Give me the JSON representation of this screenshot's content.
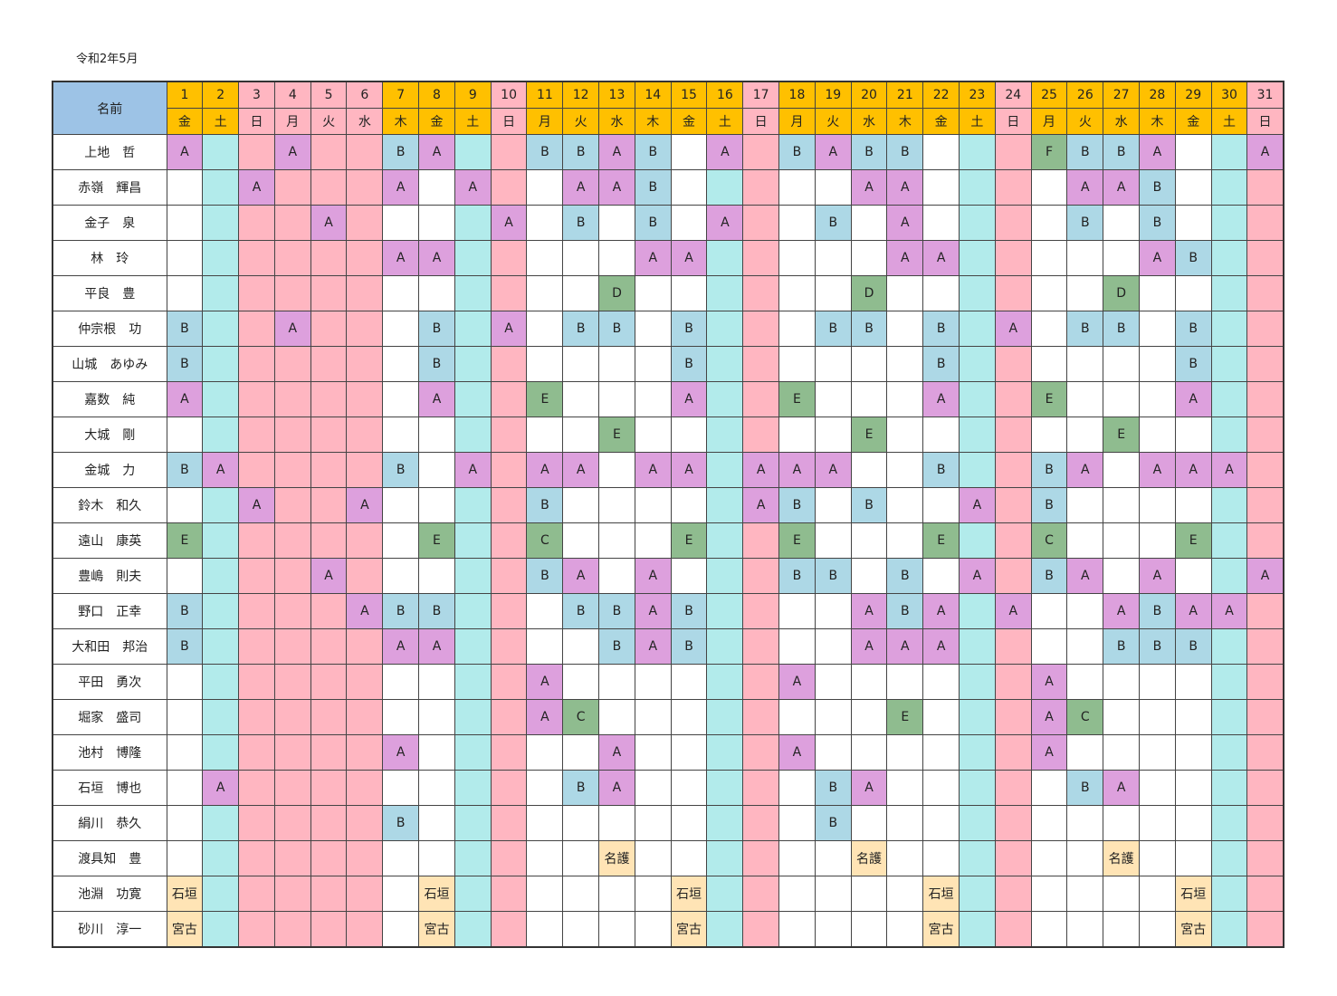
{
  "title": "令和2年5月",
  "header": {
    "name_label": "名前",
    "days": [
      {
        "num": "1",
        "wd": "金",
        "type": "wk"
      },
      {
        "num": "2",
        "wd": "土",
        "type": "wk"
      },
      {
        "num": "3",
        "wd": "日",
        "type": "we"
      },
      {
        "num": "4",
        "wd": "月",
        "type": "we"
      },
      {
        "num": "5",
        "wd": "火",
        "type": "we"
      },
      {
        "num": "6",
        "wd": "水",
        "type": "we"
      },
      {
        "num": "7",
        "wd": "木",
        "type": "wk"
      },
      {
        "num": "8",
        "wd": "金",
        "type": "wk"
      },
      {
        "num": "9",
        "wd": "土",
        "type": "wk"
      },
      {
        "num": "10",
        "wd": "日",
        "type": "we"
      },
      {
        "num": "11",
        "wd": "月",
        "type": "wk"
      },
      {
        "num": "12",
        "wd": "火",
        "type": "wk"
      },
      {
        "num": "13",
        "wd": "水",
        "type": "wk"
      },
      {
        "num": "14",
        "wd": "木",
        "type": "wk"
      },
      {
        "num": "15",
        "wd": "金",
        "type": "wk"
      },
      {
        "num": "16",
        "wd": "土",
        "type": "wk"
      },
      {
        "num": "17",
        "wd": "日",
        "type": "we"
      },
      {
        "num": "18",
        "wd": "月",
        "type": "wk"
      },
      {
        "num": "19",
        "wd": "火",
        "type": "wk"
      },
      {
        "num": "20",
        "wd": "水",
        "type": "wk"
      },
      {
        "num": "21",
        "wd": "木",
        "type": "wk"
      },
      {
        "num": "22",
        "wd": "金",
        "type": "wk"
      },
      {
        "num": "23",
        "wd": "土",
        "type": "wk"
      },
      {
        "num": "24",
        "wd": "日",
        "type": "we"
      },
      {
        "num": "25",
        "wd": "月",
        "type": "wk"
      },
      {
        "num": "26",
        "wd": "火",
        "type": "wk"
      },
      {
        "num": "27",
        "wd": "水",
        "type": "wk"
      },
      {
        "num": "28",
        "wd": "木",
        "type": "wk"
      },
      {
        "num": "29",
        "wd": "金",
        "type": "wk"
      },
      {
        "num": "30",
        "wd": "土",
        "type": "wk"
      },
      {
        "num": "31",
        "wd": "日",
        "type": "we"
      }
    ]
  },
  "column_types": [
    "wd",
    "sat",
    "sun",
    "sun",
    "sun",
    "sun",
    "wd",
    "wd",
    "sat",
    "sun",
    "wd",
    "wd",
    "wd",
    "wd",
    "wd",
    "sat",
    "sun",
    "wd",
    "wd",
    "wd",
    "wd",
    "wd",
    "sat",
    "sun",
    "wd",
    "wd",
    "wd",
    "wd",
    "wd",
    "sat",
    "sun"
  ],
  "rows": [
    {
      "name": "上地　哲",
      "cells": [
        "A",
        "",
        "",
        "A",
        "",
        "",
        "B",
        "A",
        "",
        "",
        "B",
        "B",
        "A",
        "B",
        "",
        "A",
        "",
        "B",
        "A",
        "B",
        "B",
        "",
        "",
        "",
        "F",
        "B",
        "B",
        "A",
        "",
        "",
        "A"
      ]
    },
    {
      "name": "赤嶺　輝昌",
      "cells": [
        "",
        "",
        "A",
        "",
        "",
        "",
        "A",
        "",
        "A",
        "",
        "",
        "A",
        "A",
        "B",
        "",
        "",
        "",
        "",
        "",
        "A",
        "A",
        "",
        "",
        "",
        "",
        "A",
        "A",
        "B",
        "",
        "",
        ""
      ]
    },
    {
      "name": "金子　泉",
      "cells": [
        "",
        "",
        "",
        "",
        "A",
        "",
        "",
        "",
        "",
        "A",
        "",
        "B",
        "",
        "B",
        "",
        "A",
        "",
        "",
        "B",
        "",
        "A",
        "",
        "",
        "",
        "",
        "B",
        "",
        "B",
        "",
        "",
        ""
      ]
    },
    {
      "name": "林　玲",
      "cells": [
        "",
        "",
        "",
        "",
        "",
        "",
        "A",
        "A",
        "",
        "",
        "",
        "",
        "",
        "A",
        "A",
        "",
        "",
        "",
        "",
        "",
        "A",
        "A",
        "",
        "",
        "",
        "",
        "",
        "A",
        "B",
        "",
        ""
      ]
    },
    {
      "name": "平良　豊",
      "cells": [
        "",
        "",
        "",
        "",
        "",
        "",
        "",
        "",
        "",
        "",
        "",
        "",
        "D",
        "",
        "",
        "",
        "",
        "",
        "",
        "D",
        "",
        "",
        "",
        "",
        "",
        "",
        "D",
        "",
        "",
        "",
        ""
      ]
    },
    {
      "name": "仲宗根　功",
      "cells": [
        "B",
        "",
        "",
        "A",
        "",
        "",
        "",
        "B",
        "",
        "A",
        "",
        "B",
        "B",
        "",
        "B",
        "",
        "",
        "",
        "B",
        "B",
        "",
        "B",
        "",
        "A",
        "",
        "B",
        "B",
        "",
        "B",
        "",
        ""
      ]
    },
    {
      "name": "山城　あゆみ",
      "cells": [
        "B",
        "",
        "",
        "",
        "",
        "",
        "",
        "B",
        "",
        "",
        "",
        "",
        "",
        "",
        "B",
        "",
        "",
        "",
        "",
        "",
        "",
        "B",
        "",
        "",
        "",
        "",
        "",
        "",
        "B",
        "",
        ""
      ]
    },
    {
      "name": "嘉数　純",
      "cells": [
        "A",
        "",
        "",
        "",
        "",
        "",
        "",
        "A",
        "",
        "",
        "E",
        "",
        "",
        "",
        "A",
        "",
        "",
        "E",
        "",
        "",
        "",
        "A",
        "",
        "",
        "E",
        "",
        "",
        "",
        "A",
        "",
        ""
      ]
    },
    {
      "name": "大城　剛",
      "cells": [
        "",
        "",
        "",
        "",
        "",
        "",
        "",
        "",
        "",
        "",
        "",
        "",
        "E",
        "",
        "",
        "",
        "",
        "",
        "",
        "E",
        "",
        "",
        "",
        "",
        "",
        "",
        "E",
        "",
        "",
        "",
        ""
      ]
    },
    {
      "name": "金城　力",
      "cells": [
        "B",
        "A",
        "",
        "",
        "",
        "",
        "B",
        "",
        "A",
        "",
        "A",
        "A",
        "",
        "A",
        "A",
        "",
        "A",
        "A",
        "A",
        "",
        "",
        "B",
        "",
        "",
        "B",
        "A",
        "",
        "A",
        "A",
        "A",
        ""
      ]
    },
    {
      "name": "鈴木　和久",
      "cells": [
        "",
        "",
        "A",
        "",
        "",
        "A",
        "",
        "",
        "",
        "",
        "B",
        "",
        "",
        "",
        "",
        "",
        "A",
        "B",
        "",
        "B",
        "",
        "",
        "A",
        "",
        "B",
        "",
        "",
        "",
        "",
        "",
        ""
      ]
    },
    {
      "name": "遠山　康英",
      "cells": [
        "E",
        "",
        "",
        "",
        "",
        "",
        "",
        "E",
        "",
        "",
        "C",
        "",
        "",
        "",
        "E",
        "",
        "",
        "E",
        "",
        "",
        "",
        "E",
        "",
        "",
        "C",
        "",
        "",
        "",
        "E",
        "",
        ""
      ]
    },
    {
      "name": "豊嶋　則夫",
      "cells": [
        "",
        "",
        "",
        "",
        "A",
        "",
        "",
        "",
        "",
        "",
        "B",
        "A",
        "",
        "A",
        "",
        "",
        "",
        "B",
        "B",
        "",
        "B",
        "",
        "A",
        "",
        "B",
        "A",
        "",
        "A",
        "",
        "",
        "A"
      ]
    },
    {
      "name": "野口　正幸",
      "cells": [
        "B",
        "",
        "",
        "",
        "",
        "A",
        "B",
        "B",
        "",
        "",
        "",
        "B",
        "B",
        "A",
        "B",
        "",
        "",
        "",
        "",
        "A",
        "B",
        "A",
        "",
        "A",
        "",
        "",
        "A",
        "B",
        "A",
        "A",
        ""
      ]
    },
    {
      "name": "大和田　邦治",
      "cells": [
        "B",
        "",
        "",
        "",
        "",
        "",
        "A",
        "A",
        "",
        "",
        "",
        "",
        "B",
        "A",
        "B",
        "",
        "",
        "",
        "",
        "A",
        "A",
        "A",
        "",
        "",
        "",
        "",
        "B",
        "B",
        "B",
        "",
        ""
      ]
    },
    {
      "name": "平田　勇次",
      "cells": [
        "",
        "",
        "",
        "",
        "",
        "",
        "",
        "",
        "",
        "",
        "A",
        "",
        "",
        "",
        "",
        "",
        "",
        "A",
        "",
        "",
        "",
        "",
        "",
        "",
        "A",
        "",
        "",
        "",
        "",
        "",
        ""
      ]
    },
    {
      "name": "堀家　盛司",
      "cells": [
        "",
        "",
        "",
        "",
        "",
        "",
        "",
        "",
        "",
        "",
        "A",
        "C",
        "",
        "",
        "",
        "",
        "",
        "",
        "",
        "",
        "E",
        "",
        "",
        "",
        "A",
        "C",
        "",
        "",
        "",
        "",
        ""
      ]
    },
    {
      "name": "池村　博隆",
      "cells": [
        "",
        "",
        "",
        "",
        "",
        "",
        "A",
        "",
        "",
        "",
        "",
        "",
        "A",
        "",
        "",
        "",
        "",
        "A",
        "",
        "",
        "",
        "",
        "",
        "",
        "A",
        "",
        "",
        "",
        "",
        "",
        ""
      ]
    },
    {
      "name": "石垣　博也",
      "cells": [
        "",
        "A",
        "",
        "",
        "",
        "",
        "",
        "",
        "",
        "",
        "",
        "B",
        "A",
        "",
        "",
        "",
        "",
        "",
        "B",
        "A",
        "",
        "",
        "",
        "",
        "",
        "B",
        "A",
        "",
        "",
        "",
        ""
      ]
    },
    {
      "name": "絹川　恭久",
      "cells": [
        "",
        "",
        "",
        "",
        "",
        "",
        "B",
        "",
        "",
        "",
        "",
        "",
        "",
        "",
        "",
        "",
        "",
        "",
        "B",
        "",
        "",
        "",
        "",
        "",
        "",
        "",
        "",
        "",
        "",
        "",
        ""
      ]
    },
    {
      "name": "渡具知　豊",
      "cells": [
        "",
        "",
        "",
        "",
        "",
        "",
        "",
        "",
        "",
        "",
        "",
        "",
        "名護",
        "",
        "",
        "",
        "",
        "",
        "",
        "名護",
        "",
        "",
        "",
        "",
        "",
        "",
        "名護",
        "",
        "",
        "",
        ""
      ]
    },
    {
      "name": "池淵　功寛",
      "cells": [
        "石垣",
        "",
        "",
        "",
        "",
        "",
        "",
        "石垣",
        "",
        "",
        "",
        "",
        "",
        "",
        "石垣",
        "",
        "",
        "",
        "",
        "",
        "",
        "石垣",
        "",
        "",
        "",
        "",
        "",
        "",
        "石垣",
        "",
        ""
      ]
    },
    {
      "name": "砂川　淳一",
      "cells": [
        "宮古",
        "",
        "",
        "",
        "",
        "",
        "",
        "宮古",
        "",
        "",
        "",
        "",
        "",
        "",
        "宮古",
        "",
        "",
        "",
        "",
        "",
        "",
        "宮古",
        "",
        "",
        "",
        "",
        "",
        "",
        "宮古",
        "",
        ""
      ]
    }
  ],
  "colors": {
    "A": "#dda0dd",
    "B": "#add8e6",
    "C": "#8fbc8f",
    "D": "#8fbc8f",
    "E": "#8fbc8f",
    "F": "#8fbc8f",
    "place": "#ffe4b5",
    "name_header": "#9dc3e6",
    "weekday_header": "#ffc000",
    "holiday_header": "#ffb6c1",
    "saturday_column": "#b2ebeb",
    "sunday_column": "#ffb6c1"
  }
}
